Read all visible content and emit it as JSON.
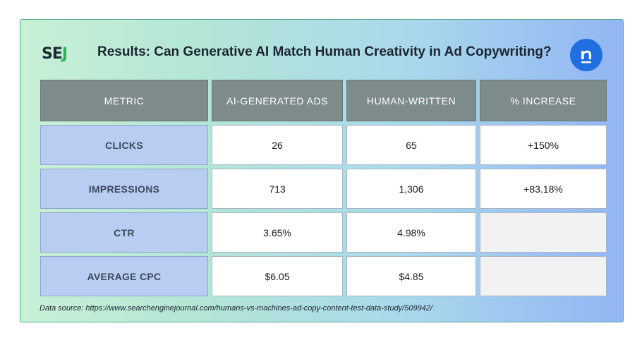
{
  "header": {
    "logo_left_a": "SE",
    "logo_left_b": "J",
    "title": "Results: Can Generative AI Match Human Creativity in Ad Copywriting?",
    "logo_right_letter": "n"
  },
  "table": {
    "columns": [
      "METRIC",
      "AI-GENERATED ADS",
      "HUMAN-WRITTEN",
      "% INCREASE"
    ],
    "rows": [
      {
        "metric": "CLICKS",
        "ai": "26",
        "human": "65",
        "increase": "+150%"
      },
      {
        "metric": "IMPRESSIONS",
        "ai": "713",
        "human": "1,306",
        "increase": "+83.18%"
      },
      {
        "metric": "CTR",
        "ai": "3.65%",
        "human": "4.98%",
        "increase": ""
      },
      {
        "metric": "AVERAGE CPC",
        "ai": "$6.05",
        "human": "$4.85",
        "increase": ""
      }
    ]
  },
  "footer": {
    "source": "Data source: https://www.searchenginejournal.com/humans-vs-machines-ad-copy-content-test-data-study/509942/"
  },
  "colors": {
    "header_cell": "#7d8b8b",
    "metric_cell": "#b9cdf2",
    "brand_green": "#2fb35a",
    "brand_blue": "#1f6fe0"
  }
}
